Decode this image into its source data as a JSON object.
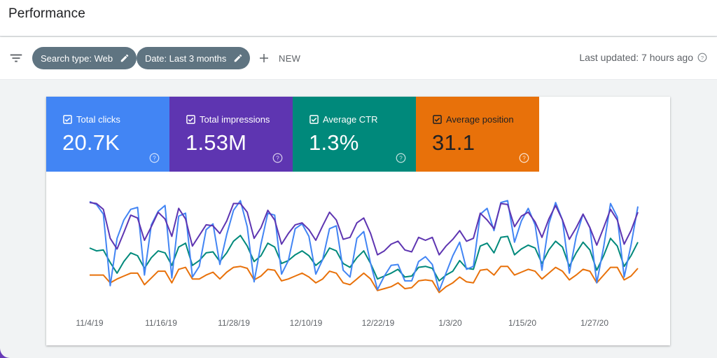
{
  "header": {
    "title": "Performance"
  },
  "toolbar": {
    "chips": [
      {
        "label": "Search type: Web"
      },
      {
        "label": "Date: Last 3 months"
      }
    ],
    "new_label": "NEW",
    "last_updated": "Last updated: 7 hours ago"
  },
  "metrics": [
    {
      "label": "Total clicks",
      "value": "20.7K",
      "checked": true,
      "color": "#4285f4"
    },
    {
      "label": "Total impressions",
      "value": "1.53M",
      "checked": true,
      "color": "#5e35b1"
    },
    {
      "label": "Average CTR",
      "value": "1.3%",
      "checked": true,
      "color": "#00897b"
    },
    {
      "label": "Average position",
      "value": "31.1",
      "checked": true,
      "color": "#e8710a"
    }
  ],
  "chart_data": {
    "type": "line",
    "x_tick_labels": [
      "11/4/19",
      "11/16/19",
      "11/28/19",
      "12/10/19",
      "12/22/19",
      "1/3/20",
      "1/15/20",
      "1/27/20"
    ],
    "series": [
      {
        "name": "Total impressions",
        "color": "#5e35b1",
        "values": [
          97,
          96,
          90,
          60,
          49,
          66,
          84,
          81,
          58,
          72,
          87,
          80,
          62,
          91,
          80,
          52,
          63,
          74,
          73,
          65,
          78,
          96,
          96,
          87,
          60,
          71,
          89,
          79,
          54,
          65,
          74,
          76,
          69,
          58,
          73,
          87,
          79,
          59,
          61,
          76,
          81,
          65,
          43,
          47,
          54,
          57,
          48,
          46,
          61,
          58,
          61,
          43,
          52,
          59,
          68,
          57,
          60,
          86,
          79,
          70,
          96,
          95,
          72,
          83,
          87,
          77,
          61,
          80,
          94,
          79,
          59,
          71,
          85,
          71,
          53,
          71,
          90,
          79,
          54,
          68,
          87
        ]
      },
      {
        "name": "Total clicks",
        "color": "#4285f4",
        "values": [
          98,
          95,
          85,
          11,
          60,
          79,
          90,
          92,
          22,
          74,
          88,
          94,
          19,
          83,
          86,
          20,
          31,
          69,
          75,
          33,
          64,
          89,
          99,
          72,
          15,
          54,
          86,
          84,
          23,
          37,
          70,
          75,
          62,
          23,
          38,
          70,
          73,
          27,
          20,
          60,
          67,
          34,
          7,
          21,
          32,
          33,
          16,
          16,
          36,
          41,
          33,
          6,
          24,
          42,
          56,
          28,
          31,
          85,
          91,
          68,
          97,
          99,
          56,
          78,
          91,
          74,
          27,
          75,
          97,
          79,
          24,
          62,
          85,
          71,
          14,
          51,
          96,
          82,
          20,
          53,
          93
        ]
      },
      {
        "name": "Average CTR",
        "color": "#00897b",
        "values": [
          50,
          47,
          48,
          35,
          24,
          36,
          45,
          42,
          29,
          40,
          47,
          45,
          32,
          51,
          55,
          32,
          37,
          45,
          46,
          36,
          45,
          57,
          63,
          52,
          36,
          42,
          55,
          51,
          34,
          37,
          43,
          47,
          42,
          32,
          38,
          50,
          47,
          34,
          30,
          40,
          47,
          34,
          18,
          21,
          24,
          28,
          20,
          21,
          30,
          31,
          29,
          16,
          22,
          26,
          37,
          29,
          28,
          52,
          55,
          45,
          61,
          62,
          43,
          49,
          53,
          50,
          34,
          48,
          57,
          51,
          31,
          45,
          56,
          48,
          27,
          42,
          60,
          52,
          31,
          42,
          56
        ]
      },
      {
        "name": "Average position",
        "color": "#e8710a",
        "values": [
          22,
          22,
          22,
          14,
          18,
          21,
          24,
          24,
          12,
          19,
          26,
          26,
          14,
          28,
          30,
          18,
          18,
          22,
          25,
          18,
          25,
          30,
          31,
          29,
          17,
          21,
          28,
          27,
          16,
          18,
          21,
          24,
          20,
          14,
          18,
          26,
          24,
          14,
          12,
          18,
          24,
          18,
          6,
          8,
          10,
          14,
          8,
          9,
          16,
          17,
          16,
          4,
          10,
          14,
          20,
          15,
          14,
          27,
          28,
          22,
          31,
          31,
          22,
          25,
          28,
          26,
          18,
          24,
          30,
          26,
          17,
          22,
          28,
          26,
          14,
          22,
          30,
          30,
          17,
          21,
          29
        ]
      }
    ]
  }
}
